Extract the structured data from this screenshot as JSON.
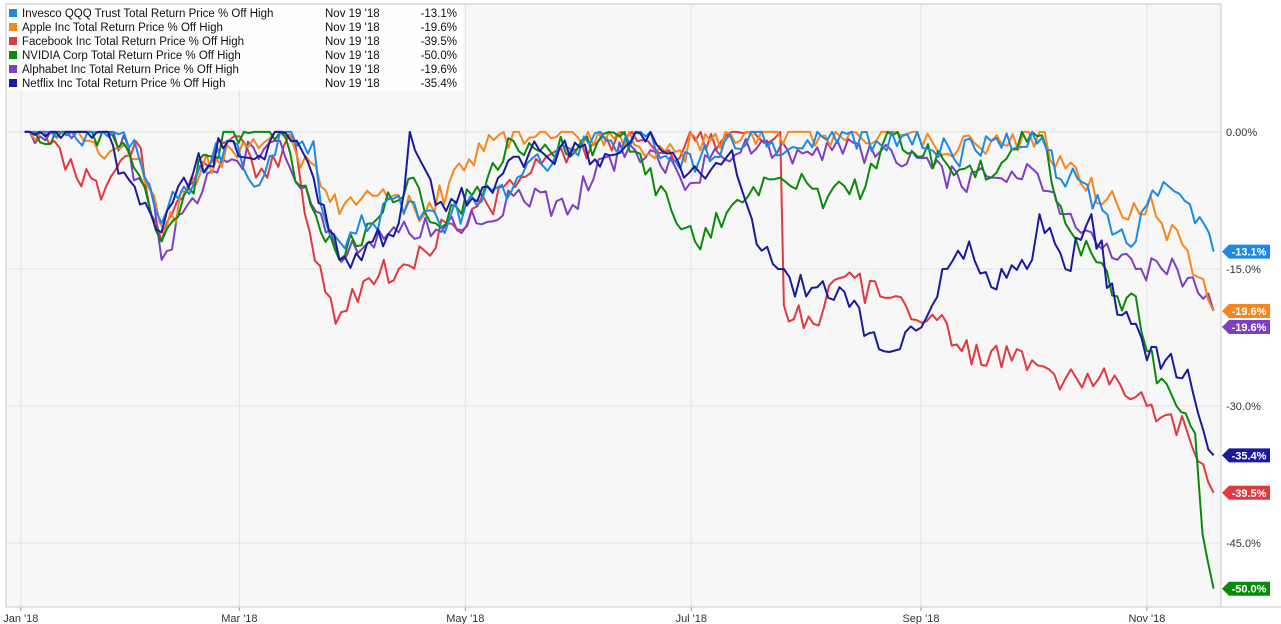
{
  "chart_data": {
    "type": "line",
    "title": "",
    "xlabel": "",
    "ylabel": "",
    "x_ticks": [
      {
        "label": "Jan '18",
        "date": "2018-01-01"
      },
      {
        "label": "Mar '18",
        "date": "2018-03-01"
      },
      {
        "label": "May '18",
        "date": "2018-05-01"
      },
      {
        "label": "Jul '18",
        "date": "2018-07-01"
      },
      {
        "label": "Sep '18",
        "date": "2018-09-01"
      },
      {
        "label": "Nov '18",
        "date": "2018-11-01"
      }
    ],
    "x_range": [
      "2017-12-28",
      "2018-11-21"
    ],
    "ylim": [
      -52,
      14
    ],
    "y_ticks": [
      {
        "value": 0,
        "label": "0.00%"
      },
      {
        "value": -15,
        "label": "-15.0%"
      },
      {
        "value": -30,
        "label": "-30.0%"
      },
      {
        "value": -45,
        "label": "-45.0%"
      }
    ],
    "grid": true,
    "legend_position": "top-left",
    "series": [
      {
        "name": "Invesco QQQ Trust Total Return Price % Off High",
        "color": "#1e88e5",
        "last_date": "Nov 19 '18",
        "last_value_label": "-13.1%",
        "points": [
          [
            "2018-01-02",
            0
          ],
          [
            "2018-01-12",
            0
          ],
          [
            "2018-01-26",
            0
          ],
          [
            "2018-02-02",
            -3
          ],
          [
            "2018-02-08",
            -10
          ],
          [
            "2018-02-14",
            -6
          ],
          [
            "2018-02-27",
            -1
          ],
          [
            "2018-03-05",
            -6
          ],
          [
            "2018-03-12",
            0
          ],
          [
            "2018-03-21",
            -1
          ],
          [
            "2018-03-23",
            -8
          ],
          [
            "2018-03-28",
            -12
          ],
          [
            "2018-04-06",
            -10
          ],
          [
            "2018-04-13",
            -7
          ],
          [
            "2018-04-24",
            -10
          ],
          [
            "2018-05-04",
            -8
          ],
          [
            "2018-05-15",
            -5
          ],
          [
            "2018-05-30",
            -2
          ],
          [
            "2018-06-08",
            -1
          ],
          [
            "2018-06-20",
            0
          ],
          [
            "2018-06-28",
            -4
          ],
          [
            "2018-07-10",
            -1
          ],
          [
            "2018-07-20",
            0
          ],
          [
            "2018-07-27",
            -2
          ],
          [
            "2018-08-08",
            0
          ],
          [
            "2018-08-20",
            -1
          ],
          [
            "2018-08-31",
            0
          ],
          [
            "2018-09-10",
            -3
          ],
          [
            "2018-09-20",
            -1
          ],
          [
            "2018-10-01",
            0
          ],
          [
            "2018-10-05",
            -2
          ],
          [
            "2018-10-10",
            -6
          ],
          [
            "2018-10-12",
            -4
          ],
          [
            "2018-10-24",
            -11
          ],
          [
            "2018-10-29",
            -12
          ],
          [
            "2018-11-01",
            -8
          ],
          [
            "2018-11-07",
            -6
          ],
          [
            "2018-11-14",
            -10
          ],
          [
            "2018-11-19",
            -13.1
          ]
        ]
      },
      {
        "name": "Apple Inc Total Return Price % Off High",
        "color": "#f7861e",
        "last_date": "Nov 19 '18",
        "last_value_label": "-19.6%",
        "points": [
          [
            "2018-01-02",
            0
          ],
          [
            "2018-01-18",
            -1
          ],
          [
            "2018-02-01",
            -3
          ],
          [
            "2018-02-06",
            -7
          ],
          [
            "2018-02-09",
            -11
          ],
          [
            "2018-02-16",
            -5
          ],
          [
            "2018-02-27",
            -2
          ],
          [
            "2018-03-12",
            0
          ],
          [
            "2018-03-23",
            -6
          ],
          [
            "2018-03-28",
            -9
          ],
          [
            "2018-04-06",
            -7
          ],
          [
            "2018-04-20",
            -9
          ],
          [
            "2018-05-02",
            -3
          ],
          [
            "2018-05-14",
            0
          ],
          [
            "2018-06-06",
            0
          ],
          [
            "2018-06-28",
            -2
          ],
          [
            "2018-07-17",
            0
          ],
          [
            "2018-08-02",
            0
          ],
          [
            "2018-08-31",
            0
          ],
          [
            "2018-09-11",
            -2
          ],
          [
            "2018-09-20",
            -1
          ],
          [
            "2018-10-03",
            0
          ],
          [
            "2018-10-10",
            -4
          ],
          [
            "2018-10-24",
            -8
          ],
          [
            "2018-10-30",
            -9
          ],
          [
            "2018-11-02",
            -7
          ],
          [
            "2018-11-05",
            -10
          ],
          [
            "2018-11-12",
            -13
          ],
          [
            "2018-11-19",
            -19.6
          ]
        ]
      },
      {
        "name": "Facebook Inc Total Return Price % Off High",
        "color": "#e03a3e",
        "last_date": "Nov 19 '18",
        "last_value_label": "-39.5%",
        "points": [
          [
            "2018-01-02",
            0
          ],
          [
            "2018-01-10",
            -1
          ],
          [
            "2018-01-16",
            -5
          ],
          [
            "2018-01-24",
            -6
          ],
          [
            "2018-02-01",
            -1
          ],
          [
            "2018-02-08",
            -12
          ],
          [
            "2018-02-15",
            -6
          ],
          [
            "2018-02-26",
            -1
          ],
          [
            "2018-03-07",
            -4
          ],
          [
            "2018-03-16",
            -1
          ],
          [
            "2018-03-20",
            -11
          ],
          [
            "2018-03-27",
            -21
          ],
          [
            "2018-04-05",
            -16
          ],
          [
            "2018-04-13",
            -15
          ],
          [
            "2018-04-20",
            -13
          ],
          [
            "2018-04-26",
            -10
          ],
          [
            "2018-05-07",
            -8
          ],
          [
            "2018-05-16",
            -5
          ],
          [
            "2018-05-31",
            -2
          ],
          [
            "2018-06-15",
            0
          ],
          [
            "2018-06-25",
            -2
          ],
          [
            "2018-07-12",
            0
          ],
          [
            "2018-07-25",
            0
          ],
          [
            "2018-07-26",
            -19
          ],
          [
            "2018-08-03",
            -21
          ],
          [
            "2018-08-10",
            -16
          ],
          [
            "2018-08-21",
            -18
          ],
          [
            "2018-09-04",
            -20
          ],
          [
            "2018-09-12",
            -24
          ],
          [
            "2018-09-20",
            -24
          ],
          [
            "2018-10-01",
            -25
          ],
          [
            "2018-10-10",
            -27
          ],
          [
            "2018-10-19",
            -27
          ],
          [
            "2018-10-29",
            -29
          ],
          [
            "2018-11-01",
            -30
          ],
          [
            "2018-11-06",
            -31
          ],
          [
            "2018-11-12",
            -33
          ],
          [
            "2018-11-19",
            -39.5
          ]
        ]
      },
      {
        "name": "NVIDIA Corp Total Return Price % Off High",
        "color": "#0a8a0a",
        "last_date": "Nov 19 '18",
        "last_value_label": "-50.0%",
        "points": [
          [
            "2018-01-02",
            0
          ],
          [
            "2018-01-23",
            0
          ],
          [
            "2018-01-30",
            -2
          ],
          [
            "2018-02-08",
            -12
          ],
          [
            "2018-02-14",
            -7
          ],
          [
            "2018-02-26",
            0
          ],
          [
            "2018-03-12",
            0
          ],
          [
            "2018-03-23",
            -11
          ],
          [
            "2018-03-28",
            -14
          ],
          [
            "2018-04-06",
            -10
          ],
          [
            "2018-04-17",
            -5
          ],
          [
            "2018-04-23",
            -10
          ],
          [
            "2018-05-07",
            -5
          ],
          [
            "2018-05-14",
            -1
          ],
          [
            "2018-05-31",
            -2
          ],
          [
            "2018-06-13",
            0
          ],
          [
            "2018-06-27",
            -10
          ],
          [
            "2018-07-02",
            -12
          ],
          [
            "2018-07-12",
            -8
          ],
          [
            "2018-07-25",
            -5
          ],
          [
            "2018-08-07",
            -7
          ],
          [
            "2018-08-17",
            -6
          ],
          [
            "2018-08-23",
            0
          ],
          [
            "2018-09-07",
            -3
          ],
          [
            "2018-09-20",
            -5
          ],
          [
            "2018-10-01",
            0
          ],
          [
            "2018-10-05",
            -2
          ],
          [
            "2018-10-10",
            -10
          ],
          [
            "2018-10-24",
            -18
          ],
          [
            "2018-10-29",
            -18
          ],
          [
            "2018-11-01",
            -24
          ],
          [
            "2018-11-05",
            -27
          ],
          [
            "2018-11-09",
            -30
          ],
          [
            "2018-11-14",
            -33
          ],
          [
            "2018-11-16",
            -44
          ],
          [
            "2018-11-19",
            -50.0
          ]
        ]
      },
      {
        "name": "Alphabet Inc Total Return Price % Off High",
        "color": "#7e3fc1",
        "last_date": "Nov 19 '18",
        "last_value_label": "-19.6%",
        "points": [
          [
            "2018-01-02",
            0
          ],
          [
            "2018-01-26",
            0
          ],
          [
            "2018-02-06",
            -8
          ],
          [
            "2018-02-08",
            -14
          ],
          [
            "2018-02-15",
            -8
          ],
          [
            "2018-02-27",
            -3
          ],
          [
            "2018-03-12",
            -1
          ],
          [
            "2018-03-19",
            -6
          ],
          [
            "2018-03-27",
            -13
          ],
          [
            "2018-04-05",
            -12
          ],
          [
            "2018-04-13",
            -11
          ],
          [
            "2018-04-26",
            -10
          ],
          [
            "2018-05-04",
            -10
          ],
          [
            "2018-05-14",
            -7
          ],
          [
            "2018-05-30",
            -8
          ],
          [
            "2018-06-06",
            -3
          ],
          [
            "2018-06-20",
            -2
          ],
          [
            "2018-06-28",
            -5
          ],
          [
            "2018-07-10",
            -3
          ],
          [
            "2018-07-20",
            -1
          ],
          [
            "2018-07-27",
            -2
          ],
          [
            "2018-08-08",
            -2
          ],
          [
            "2018-08-24",
            -2
          ],
          [
            "2018-09-04",
            -4
          ],
          [
            "2018-09-12",
            -6
          ],
          [
            "2018-09-20",
            -5
          ],
          [
            "2018-10-01",
            -4
          ],
          [
            "2018-10-10",
            -9
          ],
          [
            "2018-10-24",
            -14
          ],
          [
            "2018-10-29",
            -15
          ],
          [
            "2018-11-05",
            -15
          ],
          [
            "2018-11-12",
            -16
          ],
          [
            "2018-11-19",
            -19.6
          ]
        ]
      },
      {
        "name": "Netflix Inc Total Return Price % Off High",
        "color": "#1a1aa0",
        "last_date": "Nov 19 '18",
        "last_value_label": "-35.4%",
        "points": [
          [
            "2018-01-02",
            0
          ],
          [
            "2018-01-23",
            0
          ],
          [
            "2018-02-08",
            -11
          ],
          [
            "2018-02-14",
            -5
          ],
          [
            "2018-02-26",
            -1
          ],
          [
            "2018-03-05",
            -3
          ],
          [
            "2018-03-12",
            0
          ],
          [
            "2018-03-21",
            -5
          ],
          [
            "2018-03-28",
            -14
          ],
          [
            "2018-04-06",
            -12
          ],
          [
            "2018-04-13",
            -10
          ],
          [
            "2018-04-16",
            0
          ],
          [
            "2018-04-23",
            -8
          ],
          [
            "2018-05-07",
            -6
          ],
          [
            "2018-05-21",
            -2
          ],
          [
            "2018-06-05",
            -3
          ],
          [
            "2018-06-20",
            0
          ],
          [
            "2018-06-29",
            -5
          ],
          [
            "2018-07-12",
            -2
          ],
          [
            "2018-07-16",
            -8
          ],
          [
            "2018-07-20",
            -13
          ],
          [
            "2018-07-26",
            -15
          ],
          [
            "2018-08-01",
            -18
          ],
          [
            "2018-08-10",
            -17
          ],
          [
            "2018-08-22",
            -24
          ],
          [
            "2018-09-04",
            -19
          ],
          [
            "2018-09-11",
            -13
          ],
          [
            "2018-09-14",
            -12
          ],
          [
            "2018-09-20",
            -17
          ],
          [
            "2018-10-01",
            -14
          ],
          [
            "2018-10-03",
            -9
          ],
          [
            "2018-10-10",
            -15
          ],
          [
            "2018-10-17",
            -9
          ],
          [
            "2018-10-24",
            -20
          ],
          [
            "2018-10-29",
            -21
          ],
          [
            "2018-11-01",
            -25
          ],
          [
            "2018-11-06",
            -25
          ],
          [
            "2018-11-12",
            -26
          ],
          [
            "2018-11-19",
            -35.4
          ]
        ]
      }
    ]
  }
}
